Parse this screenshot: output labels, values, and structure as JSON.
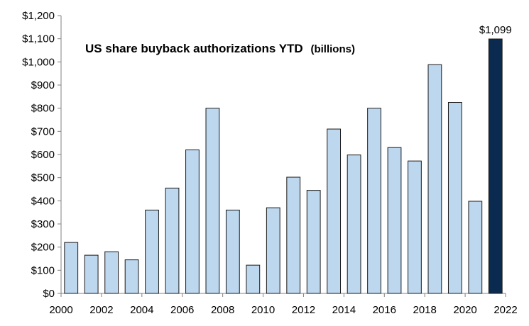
{
  "chart_data": {
    "type": "bar",
    "title": "US share buyback authorizations YTD",
    "title_suffix": "(billions)",
    "categories": [
      2000,
      2001,
      2002,
      2003,
      2004,
      2005,
      2006,
      2007,
      2008,
      2009,
      2010,
      2011,
      2012,
      2013,
      2014,
      2015,
      2016,
      2017,
      2018,
      2019,
      2020,
      2021
    ],
    "values": [
      220,
      165,
      180,
      145,
      360,
      455,
      620,
      800,
      360,
      122,
      370,
      502,
      445,
      710,
      598,
      800,
      630,
      572,
      988,
      825,
      398,
      1099
    ],
    "highlight_index": 21,
    "data_labels": [
      {
        "index": 21,
        "text": "$1,099"
      }
    ],
    "x_ticks": [
      "2000",
      "2002",
      "2004",
      "2006",
      "2008",
      "2010",
      "2012",
      "2014",
      "2016",
      "2018",
      "2020",
      "2022"
    ],
    "x_tick_values": [
      2000,
      2002,
      2004,
      2006,
      2008,
      2010,
      2012,
      2014,
      2016,
      2018,
      2020,
      2022
    ],
    "xlim": [
      2000,
      2022
    ],
    "y_ticks": [
      "$0",
      "$100",
      "$200",
      "$300",
      "$400",
      "$500",
      "$600",
      "$700",
      "$800",
      "$900",
      "$1,000",
      "$1,100",
      "$1,200"
    ],
    "ylim": [
      0,
      1200
    ],
    "xlabel": "",
    "ylabel": "",
    "grid": false,
    "colors": {
      "bar": "#bdd7ee",
      "bar_border": "#1a1a1a",
      "highlight": "#0b2a4f",
      "axis": "#808080"
    }
  }
}
